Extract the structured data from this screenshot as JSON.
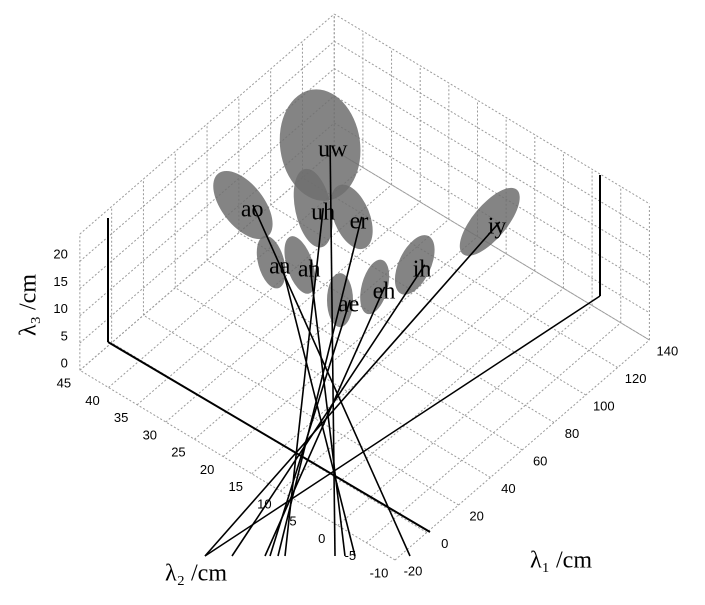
{
  "chart_data": {
    "type": "scatter3d",
    "xlabel": "λ₁ /cm",
    "ylabel": "λ₂ /cm",
    "zlabel": "λ₃ /cm",
    "labels": [
      "uw",
      "ao",
      "uh",
      "er",
      "aa",
      "ah",
      "ae",
      "eh",
      "ih",
      "iy"
    ],
    "x": [
      96.5,
      64.9,
      81.7,
      87.9,
      47.7,
      53.9,
      49.2,
      63.8,
      83.6,
      121.4
    ],
    "y": [
      35.4,
      40.1,
      32.5,
      27.5,
      30.4,
      27.1,
      18.8,
      16.8,
      15.3,
      12.7
    ],
    "z": [
      18,
      12,
      12,
      12,
      12,
      12,
      12,
      12,
      12,
      12
    ],
    "color": "#6f6f6f",
    "xlim": [
      -20,
      140
    ],
    "ylim": [
      -10,
      45
    ],
    "zlim": [
      0,
      25
    ],
    "xticks": [
      -20,
      0,
      20,
      40,
      60,
      80,
      100,
      120,
      140
    ],
    "yticks": [
      -10,
      -5,
      0,
      5,
      10,
      15,
      20,
      25,
      30,
      35,
      40,
      45
    ],
    "zticks": [
      0,
      5,
      10,
      15,
      20
    ],
    "grid": true
  }
}
